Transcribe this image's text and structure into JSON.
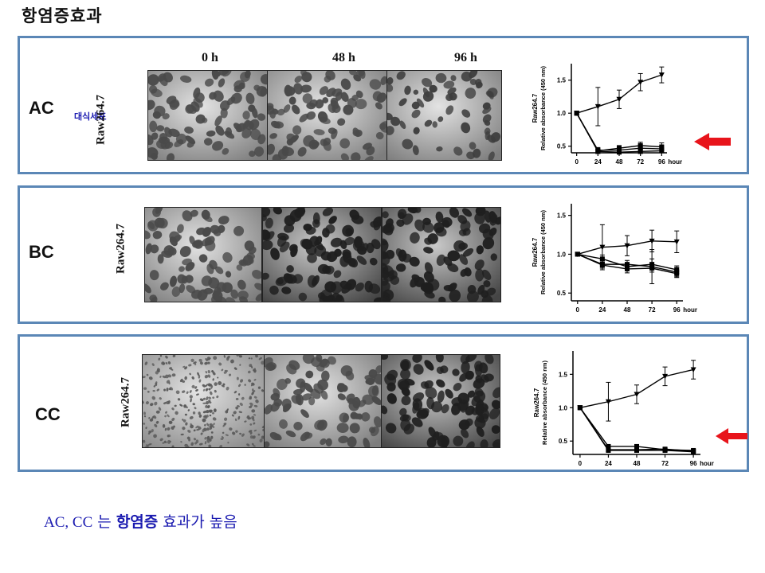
{
  "title": "항염증효과",
  "cell_type_note": "대식세포",
  "cell_line": "Raw264.7",
  "time_labels": [
    "0 h",
    "48 h",
    "96 h"
  ],
  "panels": [
    {
      "label": "AC",
      "has_arrow": true
    },
    {
      "label": "BC",
      "has_arrow": false
    },
    {
      "label": "CC",
      "has_arrow": true
    }
  ],
  "conclusion": {
    "part1": "AC, CC",
    "part2": " 는 ",
    "part3": "항염증",
    "part4": " 효과가 높음"
  },
  "accent_colors": {
    "panel_border": "#5b87b6",
    "arrow": "#e8141b",
    "conclusion_text": "#1a1ab0"
  },
  "chart_data": [
    {
      "type": "line",
      "panel": "AC",
      "ylabel": "Relative absorbance (450 nm)",
      "xlabel": "hour",
      "x": [
        0,
        24,
        48,
        72,
        96
      ],
      "x_tick_labels": [
        "0",
        "24",
        "48",
        "72",
        "96"
      ],
      "ylim": [
        0.4,
        1.75
      ],
      "y_ticks": [
        0.5,
        1.0,
        1.5
      ],
      "series": [
        {
          "marker": "triangle-down",
          "values": [
            1.0,
            1.1,
            1.21,
            1.47,
            1.58
          ],
          "errors": [
            0,
            0.29,
            0.14,
            0.13,
            0.12
          ]
        },
        {
          "marker": "square",
          "values": [
            1.0,
            0.44,
            0.44,
            0.47,
            0.46
          ],
          "errors": [
            0,
            0.04,
            0.05,
            0.06,
            0.05
          ]
        },
        {
          "marker": "square",
          "values": [
            1.0,
            0.43,
            0.47,
            0.51,
            0.49
          ],
          "errors": [
            0,
            0.03,
            0.04,
            0.05,
            0.06
          ]
        },
        {
          "marker": "square",
          "values": [
            1.0,
            0.42,
            0.41,
            0.42,
            0.43
          ],
          "errors": [
            0,
            0.03,
            0.03,
            0.03,
            0.03
          ]
        }
      ]
    },
    {
      "type": "line",
      "panel": "BC",
      "ylabel": "Relative absorbance (450 nm)",
      "xlabel": "hour",
      "x": [
        0,
        24,
        48,
        72,
        96
      ],
      "x_tick_labels": [
        "0",
        "24",
        "48",
        "72",
        "96"
      ],
      "ylim": [
        0.4,
        1.65
      ],
      "y_ticks": [
        0.5,
        1.0,
        1.5
      ],
      "series": [
        {
          "marker": "triangle-down",
          "values": [
            1.0,
            1.09,
            1.11,
            1.17,
            1.16
          ],
          "errors": [
            0,
            0.29,
            0.13,
            0.14,
            0.14
          ]
        },
        {
          "marker": "square",
          "values": [
            1.0,
            0.94,
            0.84,
            0.87,
            0.8
          ],
          "errors": [
            0,
            0.05,
            0.05,
            0.07,
            0.05
          ]
        },
        {
          "marker": "square",
          "values": [
            1.0,
            0.87,
            0.87,
            0.84,
            0.77
          ],
          "errors": [
            0,
            0.05,
            0.05,
            0.22,
            0.06
          ]
        },
        {
          "marker": "square",
          "values": [
            1.0,
            0.86,
            0.81,
            0.82,
            0.75
          ],
          "errors": [
            0,
            0.04,
            0.05,
            0.05,
            0.05
          ]
        }
      ]
    },
    {
      "type": "line",
      "panel": "CC",
      "ylabel": "Relative absorbance (450 nm)",
      "xlabel": "hour",
      "x": [
        0,
        24,
        48,
        72,
        96
      ],
      "x_tick_labels": [
        "0",
        "24",
        "48",
        "72",
        "96"
      ],
      "ylim": [
        0.3,
        1.85
      ],
      "y_ticks": [
        0.5,
        1.0,
        1.5
      ],
      "series": [
        {
          "marker": "triangle-down",
          "values": [
            1.0,
            1.09,
            1.2,
            1.47,
            1.57
          ],
          "errors": [
            0,
            0.29,
            0.14,
            0.14,
            0.14
          ]
        },
        {
          "marker": "square",
          "values": [
            1.0,
            0.42,
            0.42,
            0.37,
            0.36
          ],
          "errors": [
            0,
            0.02,
            0.02,
            0.02,
            0.02
          ]
        },
        {
          "marker": "square",
          "values": [
            1.0,
            0.37,
            0.37,
            0.38,
            0.35
          ],
          "errors": [
            0,
            0.02,
            0.02,
            0.02,
            0.02
          ]
        },
        {
          "marker": "square",
          "values": [
            1.0,
            0.36,
            0.36,
            0.36,
            0.34
          ],
          "errors": [
            0,
            0.02,
            0.02,
            0.02,
            0.02
          ]
        }
      ]
    }
  ]
}
